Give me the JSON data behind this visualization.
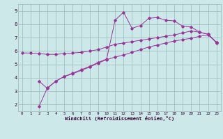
{
  "xlabel": "Windchill (Refroidissement éolien,°C)",
  "background_color": "#cce8e8",
  "line_color": "#993399",
  "grid_color": "#99bbbb",
  "xlim": [
    -0.5,
    23.5
  ],
  "ylim": [
    1.5,
    9.5
  ],
  "xticks": [
    0,
    1,
    2,
    3,
    4,
    5,
    6,
    7,
    8,
    9,
    10,
    11,
    12,
    13,
    14,
    15,
    16,
    17,
    18,
    19,
    20,
    21,
    22,
    23
  ],
  "yticks": [
    2,
    3,
    4,
    5,
    6,
    7,
    8,
    9
  ],
  "line1_x": [
    0,
    1,
    2,
    3,
    4,
    5,
    6,
    7,
    8,
    9,
    10,
    11,
    12,
    13,
    14,
    15,
    16,
    17,
    18,
    19,
    20,
    21,
    22,
    23
  ],
  "line1_y": [
    5.85,
    5.85,
    5.8,
    5.75,
    5.75,
    5.8,
    5.85,
    5.9,
    6.0,
    6.1,
    6.3,
    6.5,
    6.6,
    6.7,
    6.8,
    6.9,
    7.0,
    7.1,
    7.2,
    7.35,
    7.5,
    7.4,
    7.25,
    6.65
  ],
  "line2_x": [
    2,
    3,
    4,
    5,
    6,
    7,
    8,
    9,
    10,
    11,
    12,
    13,
    14,
    15,
    16,
    17,
    18,
    19,
    20,
    21,
    22,
    23
  ],
  "line2_y": [
    1.85,
    3.25,
    3.75,
    4.1,
    4.3,
    4.55,
    4.8,
    5.1,
    5.35,
    5.55,
    5.7,
    5.9,
    6.1,
    6.3,
    6.45,
    6.6,
    6.75,
    6.85,
    6.95,
    7.1,
    7.2,
    6.65
  ],
  "line3_x": [
    2,
    3,
    4,
    5,
    6,
    7,
    8,
    9,
    10,
    11,
    12,
    13,
    14,
    15,
    16,
    17,
    18,
    19,
    20,
    21,
    22,
    23
  ],
  "line3_y": [
    3.75,
    3.2,
    3.75,
    4.1,
    4.35,
    4.6,
    4.85,
    5.15,
    5.4,
    8.3,
    8.9,
    7.7,
    7.9,
    8.45,
    8.5,
    8.3,
    8.25,
    7.85,
    7.8,
    7.4,
    7.25,
    6.6
  ]
}
